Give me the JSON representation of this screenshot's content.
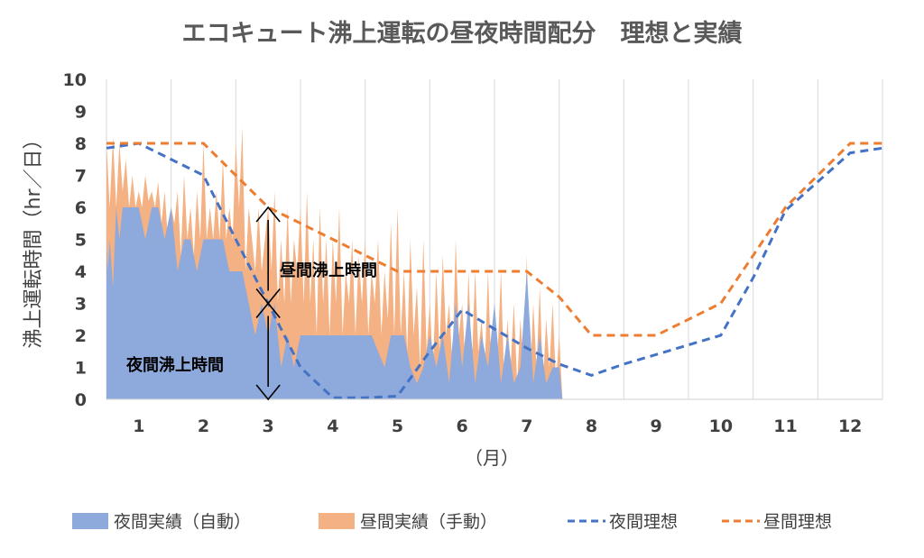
{
  "chart_data": {
    "type": "area",
    "title": "エコキュート沸上運転の昼夜時間配分　理想と実績",
    "ylabel": "沸上運転時間（hr／日）",
    "xlabel": "（月）",
    "ylim": [
      0,
      10
    ],
    "xlim": [
      0.5,
      12.5
    ],
    "yticks": [
      0,
      1,
      2,
      3,
      4,
      5,
      6,
      7,
      8,
      9,
      10
    ],
    "xticks": [
      "1",
      "2",
      "3",
      "4",
      "5",
      "6",
      "7",
      "8",
      "9",
      "10",
      "11",
      "12"
    ],
    "grid": "vertical",
    "legend_position": "bottom",
    "annotations": {
      "day": "昼間沸上時間",
      "night": "夜間沸上時間"
    },
    "colors": {
      "night_actual": "#8EA9DB",
      "day_actual": "#F4B183",
      "night_ideal": "#4472C4",
      "day_ideal": "#ED7D31",
      "grid": "#D9D9D9",
      "text": "#595959"
    },
    "series": [
      {
        "name": "夜間実績（自動）",
        "kind": "area",
        "x": [
          0.5,
          0.52,
          0.55,
          0.6,
          0.65,
          0.7,
          0.75,
          0.82,
          0.9,
          1.0,
          1.1,
          1.2,
          1.3,
          1.4,
          1.5,
          1.6,
          1.7,
          1.8,
          1.9,
          2.0,
          2.1,
          2.2,
          2.3,
          2.4,
          2.5,
          2.6,
          2.7,
          2.8,
          2.9,
          3.0,
          3.1,
          3.2,
          3.3,
          3.4,
          3.5,
          3.6,
          3.7,
          3.8,
          3.9,
          4.0,
          4.2,
          4.4,
          4.6,
          4.8,
          4.9,
          5.0,
          5.1,
          5.2,
          5.3,
          5.4,
          5.5,
          5.6,
          5.7,
          5.8,
          5.9,
          6.0,
          6.1,
          6.2,
          6.3,
          6.4,
          6.5,
          6.6,
          6.7,
          6.8,
          6.9,
          7.0,
          7.1,
          7.2,
          7.3,
          7.4,
          7.5,
          7.55
        ],
        "y": [
          5,
          4,
          5,
          3.5,
          6,
          5,
          6,
          6,
          6,
          6,
          5,
          6,
          6,
          5,
          6,
          4,
          5,
          5,
          4,
          5,
          5,
          5,
          5,
          4,
          4,
          4,
          3,
          2,
          3,
          2,
          3,
          1,
          2,
          1,
          2,
          2,
          2,
          2,
          2,
          2,
          2,
          2,
          2,
          1,
          2,
          2,
          2,
          1,
          0.5,
          1,
          2,
          1,
          2,
          0.5,
          3,
          1,
          3,
          0.5,
          2,
          1,
          3,
          0.5,
          2,
          0.5,
          1,
          4,
          0.5,
          2,
          0.5,
          1,
          1,
          0
        ]
      },
      {
        "name": "昼間実績（手動）",
        "kind": "area",
        "x": [
          0.5,
          0.55,
          0.6,
          0.65,
          0.7,
          0.75,
          0.8,
          0.85,
          0.9,
          0.95,
          1.0,
          1.05,
          1.1,
          1.15,
          1.2,
          1.25,
          1.3,
          1.35,
          1.4,
          1.45,
          1.5,
          1.55,
          1.6,
          1.65,
          1.7,
          1.75,
          1.8,
          1.85,
          1.9,
          1.95,
          2.0,
          2.05,
          2.1,
          2.15,
          2.2,
          2.25,
          2.3,
          2.35,
          2.4,
          2.45,
          2.5,
          2.55,
          2.6,
          2.65,
          2.7,
          2.75,
          2.8,
          2.85,
          2.9,
          2.95,
          3.0,
          3.05,
          3.1,
          3.15,
          3.2,
          3.25,
          3.3,
          3.35,
          3.4,
          3.45,
          3.5,
          3.55,
          3.6,
          3.65,
          3.7,
          3.75,
          3.8,
          3.85,
          3.9,
          3.95,
          4.0,
          4.05,
          4.1,
          4.15,
          4.2,
          4.25,
          4.3,
          4.35,
          4.4,
          4.45,
          4.5,
          4.55,
          4.6,
          4.65,
          4.7,
          4.75,
          4.8,
          4.85,
          4.9,
          4.95,
          5.0,
          5.05,
          5.1,
          5.15,
          5.2,
          5.25,
          5.3,
          5.35,
          5.4,
          5.45,
          5.5,
          5.55,
          5.6,
          5.65,
          5.7,
          5.75,
          5.8,
          5.85,
          5.9,
          5.95,
          6.0,
          6.05,
          6.1,
          6.15,
          6.2,
          6.25,
          6.3,
          6.35,
          6.4,
          6.45,
          6.5,
          6.55,
          6.6,
          6.65,
          6.7,
          6.75,
          6.8,
          6.85,
          6.9,
          6.95,
          7.0,
          7.05,
          7.1,
          7.15,
          7.2,
          7.25,
          7.3,
          7.35,
          7.4,
          7.45,
          7.5,
          7.55
        ],
        "y": [
          8,
          6,
          8.2,
          6,
          8,
          6.5,
          7.5,
          6,
          7,
          6,
          6.5,
          6,
          7,
          6.2,
          6.5,
          6,
          6.8,
          5.5,
          6.5,
          5,
          6,
          5.5,
          6.5,
          4.5,
          7,
          5,
          6,
          4.5,
          6.5,
          5,
          8,
          5,
          6,
          5,
          6.5,
          5,
          7.5,
          5,
          6,
          5,
          8,
          6,
          8.5,
          4,
          6,
          5,
          4,
          6,
          4,
          5,
          6,
          4,
          6.5,
          3,
          5,
          3,
          6,
          3,
          5,
          4,
          6,
          3,
          6.5,
          3,
          5,
          2,
          6,
          3,
          5,
          2,
          5,
          3,
          6,
          2,
          4,
          3,
          5,
          2,
          4.5,
          3,
          5,
          2,
          4,
          3,
          5,
          2,
          4,
          2.5,
          5.5,
          2,
          6,
          2,
          4,
          1.5,
          5,
          2,
          3.5,
          1,
          5,
          1.5,
          3,
          1,
          4,
          1.5,
          4.5,
          2,
          3,
          1,
          5,
          2,
          3,
          1,
          4,
          1,
          4,
          1.5,
          2.5,
          1,
          4,
          1,
          3,
          1.5,
          4,
          0.5,
          2.5,
          1,
          3,
          0.5,
          2.5,
          1,
          4.5,
          0.5,
          3,
          1,
          3.5,
          0.5,
          2.5,
          1,
          3,
          0.5,
          2,
          0
        ]
      },
      {
        "name": "夜間理想",
        "kind": "dashed-line",
        "x": [
          0.5,
          1.0,
          1.5,
          2.0,
          2.5,
          3.0,
          3.5,
          4.0,
          4.5,
          5.0,
          5.5,
          6.0,
          6.5,
          7.0,
          7.5,
          8.0,
          8.5,
          9.0,
          9.5,
          10.0,
          10.5,
          11.0,
          11.5,
          12.0,
          12.5
        ],
        "y": [
          7.85,
          8.0,
          7.5,
          7.0,
          5.0,
          3.0,
          1.0,
          0.05,
          0.05,
          0.1,
          1.5,
          2.8,
          2.2,
          1.6,
          1.1,
          0.75,
          1.1,
          1.4,
          1.7,
          2.0,
          3.8,
          5.9,
          6.8,
          7.7,
          7.85
        ]
      },
      {
        "name": "昼間理想",
        "kind": "dashed-line",
        "x": [
          0.5,
          1.0,
          1.5,
          2.0,
          2.5,
          3.0,
          3.5,
          4.0,
          4.5,
          5.0,
          5.5,
          6.0,
          6.5,
          7.0,
          7.5,
          8.0,
          8.5,
          9.0,
          9.5,
          10.0,
          10.5,
          11.0,
          11.5,
          12.0,
          12.5
        ],
        "y": [
          8.0,
          8.0,
          8.0,
          8.0,
          7.0,
          6.0,
          5.5,
          5.0,
          4.5,
          4.0,
          4.0,
          4.0,
          4.0,
          4.0,
          3.2,
          2.0,
          2.0,
          2.0,
          2.5,
          3.0,
          4.5,
          6.0,
          7.0,
          8.0,
          8.0
        ]
      }
    ]
  }
}
